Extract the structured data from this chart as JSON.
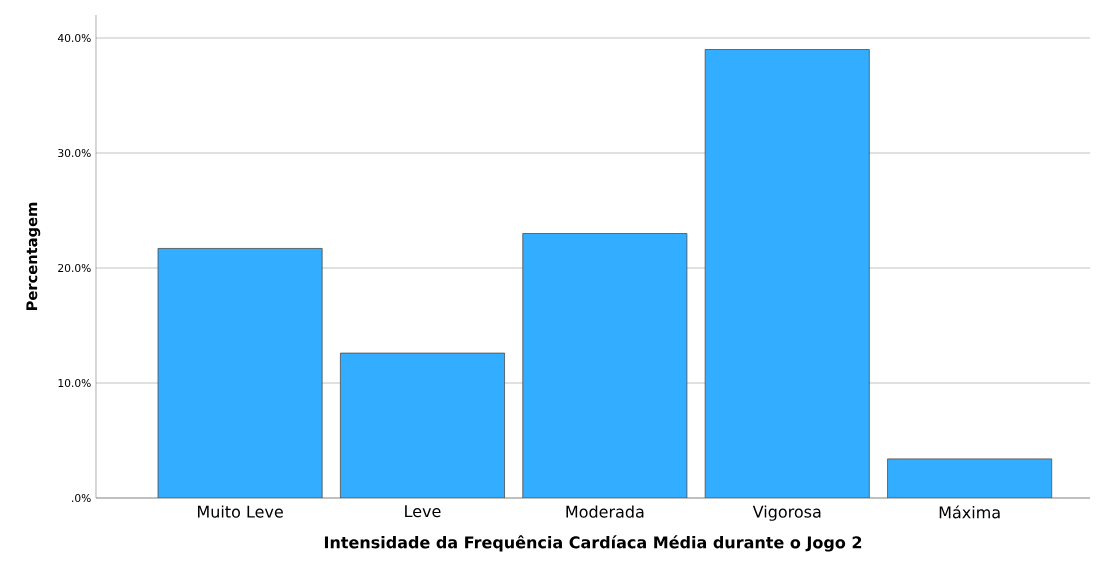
{
  "chart_data": {
    "type": "bar",
    "xlabel": "Intensidade da Frequência Cardíaca Média durante o Jogo 2",
    "ylabel": "Percentagem",
    "categories": [
      "Muito Leve",
      "Leve",
      "Moderada",
      "Vigorosa",
      "Máxima"
    ],
    "values": [
      21.7,
      12.6,
      23.0,
      39.0,
      3.4
    ],
    "color": "#33adff",
    "ylim": [
      0,
      42
    ],
    "yticks": [
      {
        "value": 0,
        "label": ".0%"
      },
      {
        "value": 10,
        "label": "10.0%"
      },
      {
        "value": 20,
        "label": "20.0%"
      },
      {
        "value": 30,
        "label": "30.0%"
      },
      {
        "value": 40,
        "label": "40.0%"
      }
    ],
    "grid": "y"
  }
}
